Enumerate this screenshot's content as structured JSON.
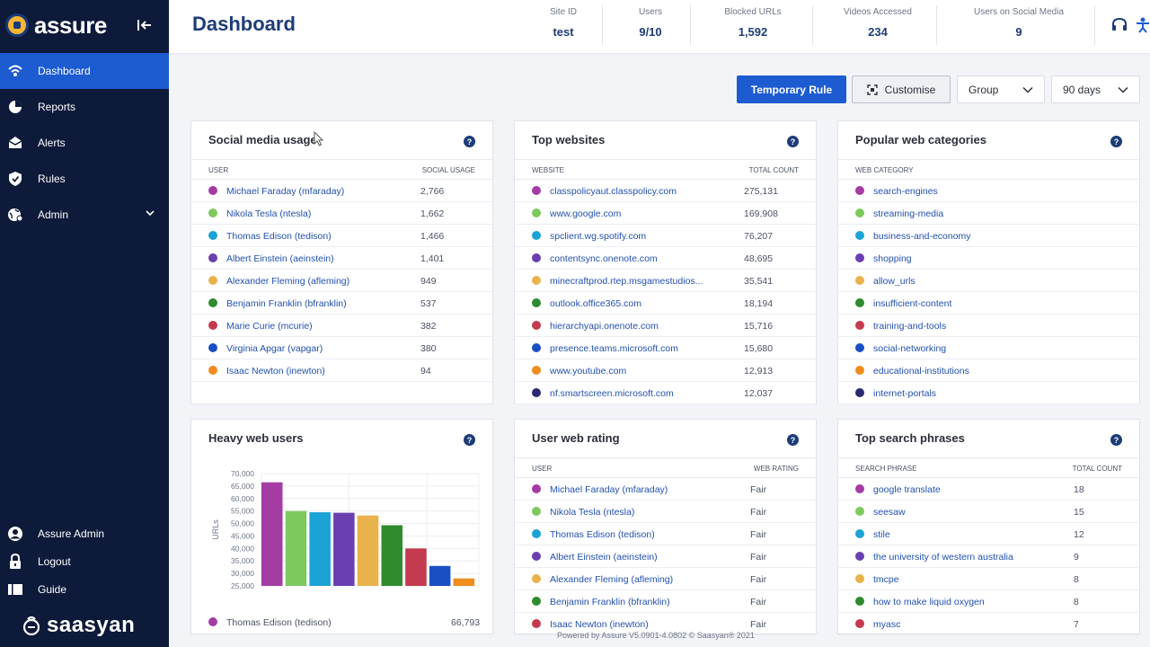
{
  "brand": {
    "name": "assure",
    "footer_logo": "saasyan"
  },
  "sidebar": {
    "items": [
      {
        "label": "Dashboard",
        "icon": "wifi-icon",
        "active": true
      },
      {
        "label": "Reports",
        "icon": "pie-chart-icon"
      },
      {
        "label": "Alerts",
        "icon": "envelope-icon"
      },
      {
        "label": "Rules",
        "icon": "shield-icon"
      },
      {
        "label": "Admin",
        "icon": "globe-gear-icon",
        "expandable": true
      }
    ],
    "bottom": [
      {
        "label": "Assure Admin",
        "icon": "user-icon"
      },
      {
        "label": "Logout",
        "icon": "lock-icon"
      },
      {
        "label": "Guide",
        "icon": "book-icon"
      }
    ]
  },
  "header": {
    "title": "Dashboard",
    "stats": [
      {
        "label": "Site ID",
        "value": "test"
      },
      {
        "label": "Users",
        "value": "9/10"
      },
      {
        "label": "Blocked URLs",
        "value": "1,592"
      },
      {
        "label": "Videos Accessed",
        "value": "234"
      },
      {
        "label": "Users on Social Media",
        "value": "9"
      }
    ]
  },
  "toolbar": {
    "temporary_rule": "Temporary Rule",
    "customise": "Customise",
    "group_select": "Group",
    "days_select": "90 days"
  },
  "series_colors": [
    "#a43ca3",
    "#7dc95e",
    "#1ba2d6",
    "#6a3fb0",
    "#e8b24c",
    "#2e8b2e",
    "#c43a4f",
    "#1a4fc4",
    "#f08c1e",
    "#2b2870"
  ],
  "social_media": {
    "title": "Social media usage",
    "col1": "USER",
    "col2": "SOCIAL USAGE",
    "rows": [
      {
        "name": "Michael Faraday (mfaraday)",
        "value": "2,766"
      },
      {
        "name": "Nikola Tesla (ntesla)",
        "value": "1,662"
      },
      {
        "name": "Thomas Edison (tedison)",
        "value": "1,466"
      },
      {
        "name": "Albert Einstein (aeinstein)",
        "value": "1,401"
      },
      {
        "name": "Alexander Fleming (afleming)",
        "value": "949"
      },
      {
        "name": "Benjamin Franklin (bfranklin)",
        "value": "537"
      },
      {
        "name": "Marie Curie (mcurie)",
        "value": "382"
      },
      {
        "name": "Virginia Apgar (vapgar)",
        "value": "380"
      },
      {
        "name": "Isaac Newton (inewton)",
        "value": "94"
      }
    ]
  },
  "top_websites": {
    "title": "Top websites",
    "col1": "WEBSITE",
    "col2": "TOTAL COUNT",
    "rows": [
      {
        "name": "classpolicyaut.classpolicy.com",
        "value": "275,131"
      },
      {
        "name": "www.google.com",
        "value": "169,908"
      },
      {
        "name": "spclient.wg.spotify.com",
        "value": "76,207"
      },
      {
        "name": "contentsync.onenote.com",
        "value": "48,695"
      },
      {
        "name": "minecraftprod.rtep.msgamestudios...",
        "value": "35,541"
      },
      {
        "name": "outlook.office365.com",
        "value": "18,194"
      },
      {
        "name": "hierarchyapi.onenote.com",
        "value": "15,716"
      },
      {
        "name": "presence.teams.microsoft.com",
        "value": "15,680"
      },
      {
        "name": "www.youtube.com",
        "value": "12,913"
      },
      {
        "name": "nf.smartscreen.microsoft.com",
        "value": "12,037"
      }
    ]
  },
  "web_categories": {
    "title": "Popular web categories",
    "col1": "WEB CATEGORY",
    "rows": [
      {
        "name": "search-engines"
      },
      {
        "name": "streaming-media"
      },
      {
        "name": "business-and-economy"
      },
      {
        "name": "shopping"
      },
      {
        "name": "allow_urls"
      },
      {
        "name": "insufficient-content"
      },
      {
        "name": "training-and-tools"
      },
      {
        "name": "social-networking"
      },
      {
        "name": "educational-institutions"
      },
      {
        "name": "internet-portals"
      }
    ]
  },
  "heavy_web_users": {
    "title": "Heavy web users",
    "footer_row": {
      "name": "Thomas Edison (tedison)",
      "value": "66,793"
    }
  },
  "chart_data": {
    "type": "bar",
    "ylabel": "URLs",
    "ylim": [
      25000,
      70000
    ],
    "yticks": [
      "70,000",
      "65,000",
      "60,000",
      "55,000",
      "50,000",
      "45,000",
      "40,000",
      "35,000",
      "30,000",
      "25,000"
    ],
    "values": [
      66500,
      55000,
      54500,
      54300,
      53200,
      49300,
      40000,
      33000,
      28000
    ]
  },
  "user_web_rating": {
    "title": "User web rating",
    "col1": "USER",
    "col2": "WEB RATING",
    "rows": [
      {
        "name": "Michael Faraday (mfaraday)",
        "value": "Fair"
      },
      {
        "name": "Nikola Tesla (ntesla)",
        "value": "Fair"
      },
      {
        "name": "Thomas Edison (tedison)",
        "value": "Fair"
      },
      {
        "name": "Albert Einstein (aeinstein)",
        "value": "Fair"
      },
      {
        "name": "Alexander Fleming (afleming)",
        "value": "Fair"
      },
      {
        "name": "Benjamin Franklin (bfranklin)",
        "value": "Fair"
      },
      {
        "name": "Isaac Newton (inewton)",
        "value": "Fair"
      }
    ]
  },
  "search_phrases": {
    "title": "Top search phrases",
    "col1": "SEARCH PHRASE",
    "col2": "TOTAL COUNT",
    "rows": [
      {
        "name": "google translate",
        "value": "18"
      },
      {
        "name": "seesaw",
        "value": "15"
      },
      {
        "name": "stile",
        "value": "12"
      },
      {
        "name": "the university of western australia",
        "value": "9"
      },
      {
        "name": "tmcpe",
        "value": "8"
      },
      {
        "name": "how to make liquid oxygen",
        "value": "8"
      },
      {
        "name": "myasc",
        "value": "7"
      }
    ]
  },
  "footer": {
    "text": "Powered by Assure V5.0901-4.0802 © Saasyan® 2021"
  }
}
